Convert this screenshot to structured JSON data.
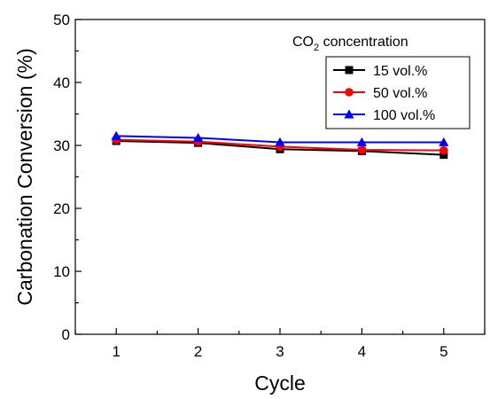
{
  "chart_data": {
    "type": "line",
    "title": "",
    "xlabel": "Cycle",
    "ylabel": "Carbonation Conversion (%)",
    "x": [
      1,
      2,
      3,
      4,
      5
    ],
    "xticks": [
      "1",
      "2",
      "3",
      "4",
      "5"
    ],
    "xlim": [
      0.5,
      5.5
    ],
    "ylim": [
      0,
      50
    ],
    "yticks": [
      "0",
      "10",
      "20",
      "30",
      "40",
      "50"
    ],
    "grid": false,
    "legend": {
      "placement": "top-right",
      "title_main": "CO",
      "title_sub": "2",
      "title_rest": " concentration"
    },
    "series": [
      {
        "name": "15 vol.%",
        "values": [
          30.7,
          30.4,
          29.4,
          29.1,
          28.5
        ],
        "color": "#000000",
        "marker": "square"
      },
      {
        "name": "50 vol.%",
        "values": [
          30.9,
          30.6,
          29.8,
          29.3,
          29.2
        ],
        "color": "#ff0000",
        "marker": "circle"
      },
      {
        "name": "100 vol.%",
        "values": [
          31.5,
          31.2,
          30.5,
          30.5,
          30.5
        ],
        "color": "#0000ff",
        "marker": "triangle"
      }
    ]
  }
}
